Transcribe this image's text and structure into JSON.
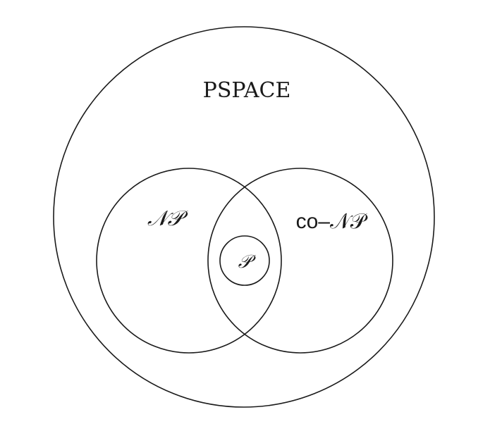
{
  "diagram": {
    "sets": {
      "pspace": {
        "label": "PSPACE"
      },
      "np": {
        "label": "𝒩𝒫"
      },
      "conp": {
        "label": "co–𝒩𝒫"
      },
      "p": {
        "label": "𝒫"
      }
    },
    "colors": {
      "stroke": "#1a1a1a",
      "background": "#ffffff"
    }
  }
}
